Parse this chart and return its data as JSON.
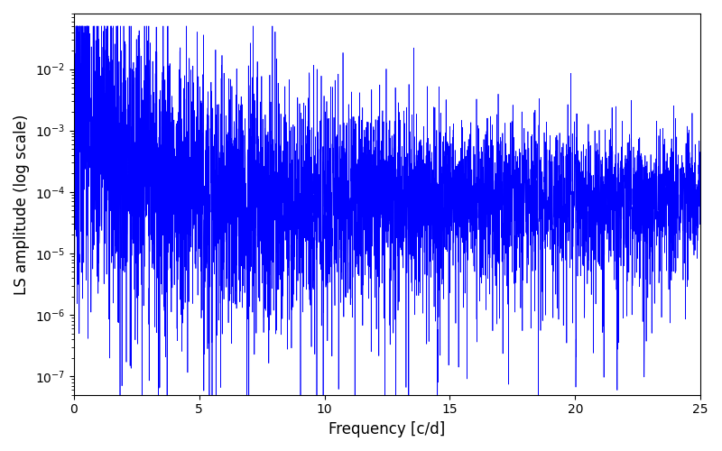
{
  "xlabel": "Frequency [c/d]",
  "ylabel": "LS amplitude (log scale)",
  "xlim": [
    0,
    25
  ],
  "ylim": [
    5e-08,
    0.08
  ],
  "line_color": "#0000ff",
  "line_width": 0.5,
  "background_color": "#ffffff",
  "n_points": 5000,
  "freq_max": 25.0,
  "seed": 7
}
